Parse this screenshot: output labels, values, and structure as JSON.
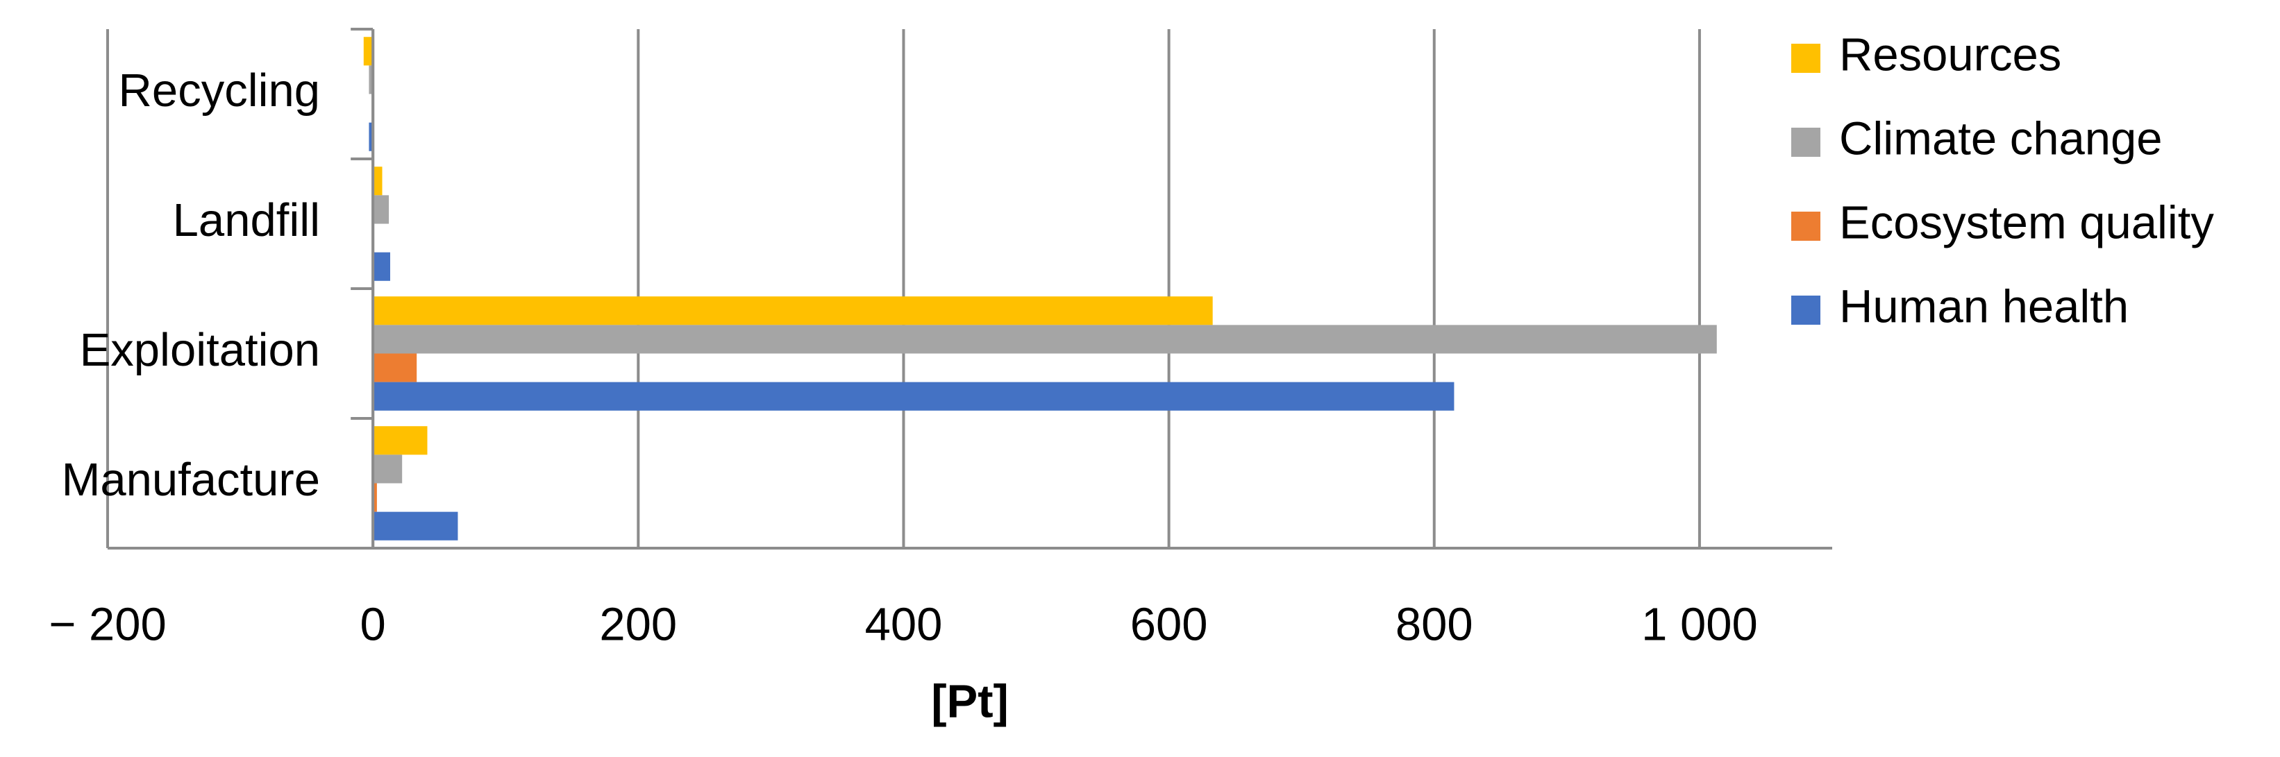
{
  "chart_data": {
    "type": "hbar",
    "xlabel": "[Pt]",
    "categories": [
      "Manufacture",
      "Exploitation",
      "Landfill",
      "Recycling"
    ],
    "series": [
      {
        "name": "Resources",
        "color": "#ffc000",
        "values": [
          41,
          633,
          7,
          -7
        ]
      },
      {
        "name": "Climate change",
        "color": "#a5a5a5",
        "values": [
          22,
          1013,
          12,
          -3
        ]
      },
      {
        "name": "Ecosystem quality",
        "color": "#ed7d31",
        "values": [
          3,
          33,
          0,
          0
        ]
      },
      {
        "name": "Human health",
        "color": "#4472c4",
        "values": [
          64,
          815,
          13,
          -3
        ]
      }
    ],
    "xlim": [
      -200,
      1100
    ],
    "xticks": [
      {
        "value": -200,
        "label": "− 200"
      },
      0,
      200,
      400,
      600,
      800,
      {
        "value": 1000,
        "label": "1 000"
      }
    ],
    "grid": true,
    "legend": "right"
  }
}
